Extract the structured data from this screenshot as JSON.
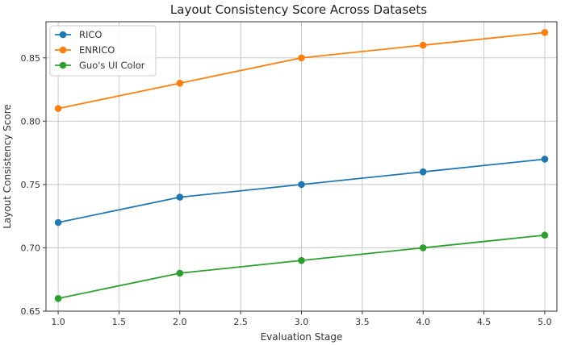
{
  "chart_data": {
    "type": "line",
    "title": "Layout Consistency Score Across Datasets",
    "xlabel": "Evaluation Stage",
    "ylabel": "Layout Consistency Score",
    "xlim": [
      0.9,
      5.1
    ],
    "ylim": [
      0.65,
      0.8785
    ],
    "xticks": [
      1.0,
      1.5,
      2.0,
      2.5,
      3.0,
      3.5,
      4.0,
      4.5,
      5.0
    ],
    "yticks": [
      0.65,
      0.7,
      0.75,
      0.8,
      0.85
    ],
    "xtick_labels": [
      "1.0",
      "1.5",
      "2.0",
      "2.5",
      "3.0",
      "3.5",
      "4.0",
      "4.5",
      "5.0"
    ],
    "ytick_labels": [
      "0.65",
      "0.70",
      "0.75",
      "0.80",
      "0.85"
    ],
    "grid": true,
    "legend_position": "top-left",
    "x": [
      1,
      2,
      3,
      4,
      5
    ],
    "series": [
      {
        "name": "RICO",
        "color": "#1f77b4",
        "values": [
          0.72,
          0.74,
          0.75,
          0.76,
          0.77
        ]
      },
      {
        "name": "ENRICO",
        "color": "#ff7f0e",
        "values": [
          0.81,
          0.83,
          0.85,
          0.86,
          0.87
        ]
      },
      {
        "name": "Guo's UI Color",
        "color": "#2ca02c",
        "values": [
          0.66,
          0.68,
          0.69,
          0.7,
          0.71
        ]
      }
    ]
  }
}
